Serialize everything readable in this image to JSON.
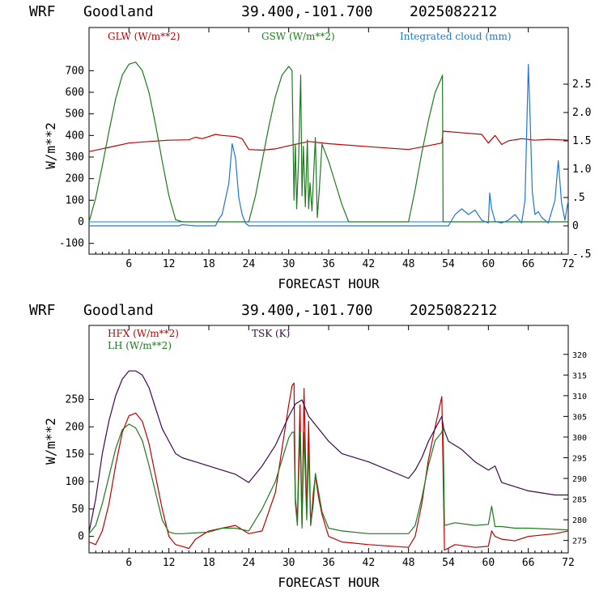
{
  "top": {
    "header": {
      "model": "WRF",
      "site": "Goodland",
      "coords": "39.400,-101.700",
      "run": "2025082212"
    }
  },
  "bottom": {
    "header": {
      "model": "WRF",
      "site": "Goodland",
      "coords": "39.400,-101.700",
      "run": "2025082212"
    }
  },
  "chart_data": [
    {
      "type": "line",
      "title": "",
      "xlabel": "FORECAST HOUR",
      "ylabel": "W/m**2",
      "y2label": "",
      "xlim": [
        0,
        72
      ],
      "ylim": [
        -150,
        900
      ],
      "y2lim": [
        -0.5,
        3.5
      ],
      "x_ticks": [
        6,
        12,
        18,
        24,
        30,
        36,
        42,
        48,
        54,
        60,
        66,
        72
      ],
      "y_ticks": [
        -100,
        0,
        100,
        200,
        300,
        400,
        500,
        600,
        700
      ],
      "y2_ticks": [
        -0.5,
        0,
        0.5,
        1.0,
        1.5,
        2.0,
        2.5
      ],
      "y2_tick_labels": [
        "-.5",
        "0",
        ".5",
        "1.0",
        "1.5",
        "2.0",
        "2.5"
      ],
      "series": [
        {
          "name": "GLW (W/m**2)",
          "color": "#c00000",
          "axis": "left",
          "x": [
            0,
            3,
            6,
            9,
            12,
            15,
            16,
            17,
            18,
            19,
            20,
            22,
            23,
            24,
            26,
            28,
            30,
            33,
            36,
            42,
            48,
            53,
            53.2,
            55,
            57,
            59,
            60,
            61,
            62,
            63,
            65,
            67,
            69,
            72
          ],
          "y": [
            325,
            345,
            365,
            372,
            378,
            380,
            392,
            385,
            395,
            405,
            400,
            395,
            385,
            335,
            332,
            338,
            352,
            372,
            362,
            348,
            335,
            365,
            420,
            415,
            410,
            405,
            365,
            400,
            358,
            375,
            385,
            378,
            382,
            378
          ]
        },
        {
          "name": "GSW (W/m**2)",
          "color": "#1f7a1f",
          "axis": "left",
          "x": [
            0,
            1,
            2,
            3,
            4,
            5,
            6,
            7,
            8,
            9,
            10,
            11,
            12,
            13,
            14,
            24,
            25,
            26,
            27,
            28,
            29,
            30,
            30.5,
            30.8,
            31,
            31.2,
            31.5,
            31.8,
            32,
            32.2,
            32.5,
            32.8,
            33,
            33.2,
            33.5,
            34,
            34.3,
            34.6,
            35,
            36,
            37,
            38,
            39,
            48,
            49,
            50,
            51,
            52,
            53,
            53.1,
            53.2,
            72
          ],
          "y": [
            0,
            110,
            260,
            420,
            570,
            680,
            730,
            740,
            700,
            600,
            450,
            280,
            120,
            10,
            0,
            0,
            120,
            280,
            440,
            580,
            680,
            720,
            700,
            100,
            360,
            60,
            300,
            680,
            120,
            350,
            70,
            380,
            60,
            180,
            50,
            390,
            20,
            150,
            360,
            280,
            180,
            80,
            0,
            0,
            150,
            320,
            470,
            600,
            670,
            680,
            0,
            0
          ]
        },
        {
          "name": "Integrated cloud (mm)",
          "color": "#1f77d0",
          "axis": "right",
          "x": [
            0,
            13.5,
            14,
            15,
            16,
            19,
            19.5,
            20,
            21,
            21.5,
            22,
            22.5,
            23,
            23.5,
            24,
            54,
            55,
            56,
            57,
            58,
            59,
            60,
            60.2,
            60.5,
            61,
            62,
            63,
            64,
            65,
            65.5,
            66,
            66.3,
            66.6,
            67,
            67.5,
            68,
            69,
            70,
            70.5,
            71,
            71.5,
            72
          ],
          "y": [
            0,
            0,
            0.02,
            0.01,
            0,
            0,
            0.12,
            0.2,
            0.75,
            1.45,
            1.2,
            0.5,
            0.2,
            0.05,
            0,
            0,
            0.2,
            0.3,
            0.2,
            0.28,
            0.1,
            0.05,
            0.58,
            0.3,
            0.08,
            0.05,
            0.1,
            0.2,
            0.05,
            0.45,
            2.85,
            1.8,
            0.6,
            0.2,
            0.25,
            0.15,
            0.05,
            0.45,
            1.15,
            0.4,
            0.1,
            0.45
          ]
        }
      ],
      "legend_position": "top"
    },
    {
      "type": "line",
      "title": "",
      "xlabel": "FORECAST HOUR",
      "ylabel": "W/m**2",
      "y2label": "",
      "xlim": [
        0,
        72
      ],
      "ylim": [
        -30,
        385
      ],
      "y2lim": [
        272,
        327
      ],
      "x_ticks": [
        6,
        12,
        18,
        24,
        30,
        36,
        42,
        48,
        54,
        60,
        66,
        72
      ],
      "x_tick_labels": [
        "6",
        "12",
        "18",
        "24",
        "30",
        "36",
        "42",
        "48",
        "54",
        "60",
        "66",
        "72"
      ],
      "y_ticks": [
        0,
        50,
        100,
        150,
        200,
        250
      ],
      "y2_ticks": [
        275,
        280,
        285,
        290,
        295,
        300,
        305,
        310,
        315,
        320
      ],
      "series": [
        {
          "name": "HFX (W/m**2)",
          "color": "#c00000",
          "axis": "left",
          "x": [
            0,
            1,
            2,
            3,
            4,
            5,
            6,
            7,
            8,
            9,
            10,
            11,
            12,
            13,
            14,
            15,
            16,
            18,
            20,
            22,
            24,
            26,
            28,
            29,
            30,
            30.5,
            30.8,
            31,
            31.3,
            31.7,
            32,
            32.3,
            32.7,
            33,
            33.3,
            33.7,
            34,
            34.5,
            35,
            36,
            38,
            42,
            48,
            49,
            50,
            51,
            52,
            53,
            53.2,
            53.4,
            55,
            58,
            60,
            60.5,
            61,
            62,
            64,
            66,
            70,
            72
          ],
          "y": [
            -10,
            -15,
            10,
            60,
            130,
            190,
            220,
            225,
            210,
            170,
            110,
            50,
            0,
            -15,
            -18,
            -22,
            -5,
            10,
            15,
            20,
            5,
            10,
            80,
            160,
            240,
            275,
            280,
            70,
            30,
            240,
            20,
            270,
            40,
            210,
            20,
            80,
            110,
            70,
            40,
            0,
            -10,
            -15,
            -20,
            0,
            60,
            140,
            200,
            255,
            120,
            -25,
            -15,
            -20,
            -18,
            10,
            0,
            -5,
            -8,
            0,
            5,
            10
          ]
        },
        {
          "name": "LH (W/m**2)",
          "color": "#1f7a1f",
          "axis": "left",
          "x": [
            0,
            1,
            2,
            3,
            4,
            5,
            6,
            7,
            8,
            9,
            10,
            11,
            12,
            13,
            14,
            18,
            20,
            22,
            24,
            26,
            28,
            29,
            30,
            30.5,
            30.8,
            31,
            31.3,
            31.7,
            32,
            32.3,
            32.7,
            33,
            33.3,
            33.7,
            34,
            34.5,
            35,
            36,
            38,
            42,
            48,
            49,
            50,
            51,
            52,
            53,
            53.2,
            53.4,
            55,
            58,
            60,
            60.5,
            61,
            62,
            64,
            66,
            70,
            72
          ],
          "y": [
            5,
            20,
            60,
            110,
            160,
            195,
            205,
            198,
            175,
            130,
            80,
            30,
            8,
            5,
            5,
            8,
            15,
            15,
            10,
            50,
            100,
            140,
            180,
            190,
            190,
            60,
            20,
            190,
            15,
            190,
            30,
            160,
            20,
            60,
            115,
            80,
            45,
            15,
            10,
            5,
            5,
            20,
            70,
            130,
            175,
            190,
            200,
            20,
            25,
            20,
            22,
            55,
            18,
            18,
            15,
            15,
            13,
            12
          ]
        },
        {
          "name": "TSK (K)",
          "color": "#3c0b4a",
          "axis": "right",
          "x": [
            0,
            1,
            2,
            3,
            4,
            5,
            6,
            7,
            8,
            9,
            10,
            11,
            12,
            13,
            14,
            16,
            18,
            20,
            22,
            24,
            26,
            28,
            30,
            31,
            32,
            33,
            34,
            36,
            38,
            42,
            48,
            49,
            50,
            51,
            52,
            53,
            53.3,
            54,
            56,
            58,
            60,
            61,
            62,
            66,
            70,
            72
          ],
          "y": [
            277,
            285,
            296,
            304,
            310,
            314,
            316,
            316,
            315,
            312,
            307,
            302,
            299,
            296,
            295,
            294,
            293,
            292,
            291,
            289,
            293,
            298,
            305,
            308,
            309,
            305,
            303,
            299,
            296,
            294,
            290,
            292,
            295,
            299,
            302,
            305,
            302,
            299,
            297,
            294,
            292,
            293,
            289,
            287,
            286,
            286
          ]
        }
      ],
      "legend_position": "top-left"
    }
  ]
}
